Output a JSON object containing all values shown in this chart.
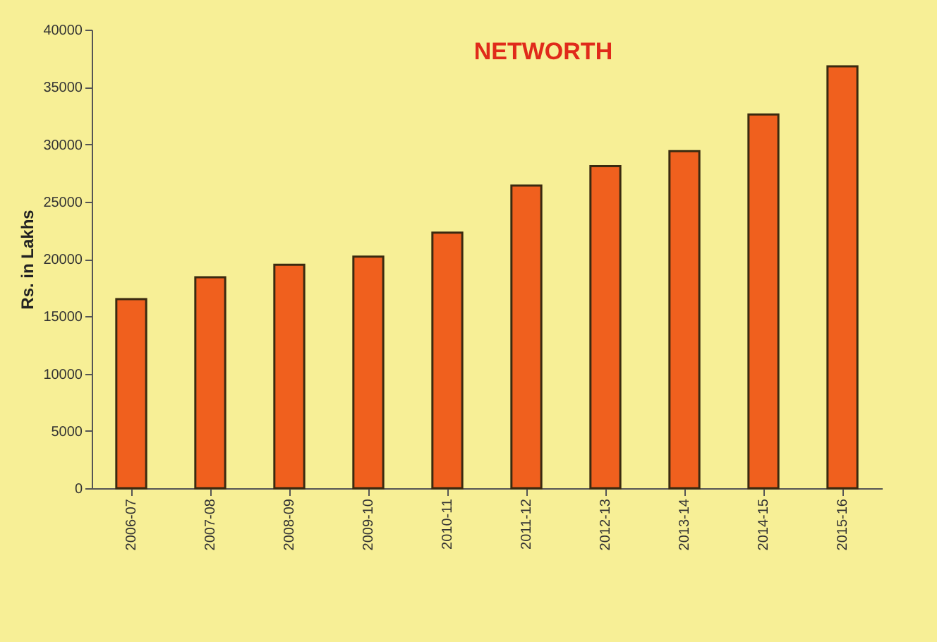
{
  "chart_data": {
    "type": "bar",
    "title": "NETWORTH",
    "ylabel": "Rs. in Lakhs",
    "categories": [
      "2006-07",
      "2007-08",
      "2008-09",
      "2009-10",
      "2010-11",
      "2011-12",
      "2012-13",
      "2013-14",
      "2014-15",
      "2015-16"
    ],
    "values": [
      16500,
      18400,
      19500,
      20200,
      22300,
      26400,
      28100,
      29400,
      32600,
      36800
    ],
    "color": "#f0601e",
    "ylim": [
      0,
      40000
    ],
    "yticks": [
      0,
      5000,
      10000,
      15000,
      20000,
      25000,
      30000,
      35000,
      40000
    ],
    "grid": false
  }
}
